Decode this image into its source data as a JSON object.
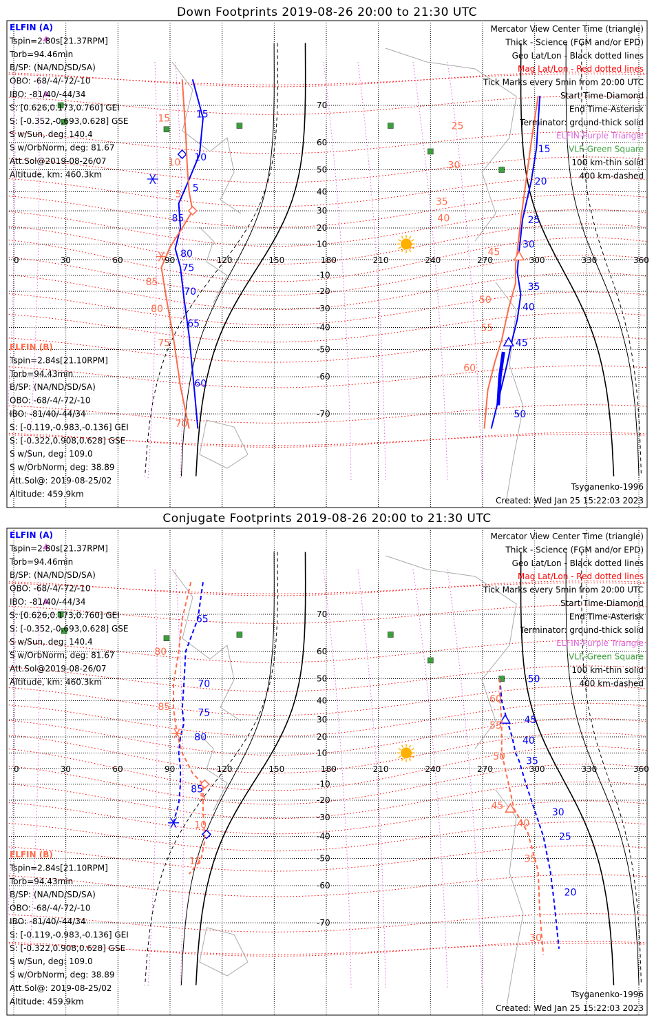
{
  "colors": {
    "elfin_a": "#0000ff",
    "elfin_b": "#ff6a4a",
    "mag_grid": "#ff0000",
    "purple": "#dd66dd",
    "vlf_green": "#3aa03a",
    "terminator": "#000000",
    "sun": "#ffb000"
  },
  "chart_data": [
    {
      "type": "scatter",
      "title": "Down Footprints 2019-08-26 20:00 to 21:30 UTC",
      "projection": "mercator",
      "xlim": [
        0,
        360
      ],
      "ylim": [
        -80,
        80
      ],
      "x_ticks": [
        "0",
        "30",
        "60",
        "90",
        "120",
        "150",
        "180",
        "210",
        "240",
        "270",
        "300",
        "330",
        "360"
      ],
      "y_ticks": [
        "70",
        "60",
        "50",
        "40",
        "30",
        "20",
        "10",
        "-10",
        "-20",
        "-30",
        "-40",
        "-50",
        "-60",
        "-70"
      ],
      "elfin_a_info": [
        "ELFIN (A)",
        "Tspin=2.80s[21.37RPM]",
        "Torb=94.46min",
        "B/SP: (NA/ND/SD/SA)",
        "OBO: -68/-4/-72/-10",
        "IBO: -81/40/-44/34",
        "S: [0.626,0.173,0.760] GEI",
        "S: [-0.352,-0.693,0.628] GSE",
        "S w/Sun, deg: 140.4",
        "S w/OrbNorm, deg: 81.67",
        "Att.Sol@2019-08-26/07",
        "Altitude, km: 460.3km"
      ],
      "elfin_b_info": [
        "ELFIN (B)",
        "Tspin=2.84s[21.10RPM]",
        "Torb=94.43min",
        "B/SP: (NA/ND/SD/SA)",
        "OBO: -68/-4/-72/-10",
        "IBO: -81/40/-44/34",
        "S: [-0.119,-0.983,-0.136] GEI",
        "S: [-0.322,0.908,0.628] GSE",
        "S w/Sun, deg: 109.0",
        "S w/OrbNorm, deg: 38.89",
        "Att.Sol@: 2019-08-25/02",
        "Altitude: 459.9km"
      ],
      "legend": [
        "Mercator View Center Time (triangle)",
        "Thick - Science (FGM and/or EPD)",
        "Geo Lat/Lon - Black dotted lines",
        "Mag Lat/Lon - Red dotted lines",
        "Tick Marks every 5min from 20:00 UTC",
        "Start Time-Diamond",
        "End Time-Asterisk",
        "Terminator: ground-thick solid",
        "ELFIN-Purple Triangle",
        "VLF-Green Square",
        "100 km-thin solid",
        "400 km-dashed"
      ],
      "model": "Tsyganenko-1996",
      "created": "Created: Wed Jan 25 15:22:03 2023",
      "sun": {
        "lon": 226,
        "lat": 10
      },
      "vlf_stations": [
        [
          88,
          64
        ],
        [
          27,
          70
        ],
        [
          29,
          66
        ],
        [
          130,
          65
        ],
        [
          217,
          65
        ],
        [
          240,
          57
        ],
        [
          281,
          50
        ]
      ],
      "series": [
        {
          "name": "ELFIN (A)",
          "dashed": false,
          "color_key": "elfin_a",
          "pass1": [
            [
              103,
              75
            ],
            [
              109,
              67
            ],
            [
              107,
              56
            ],
            [
              100,
              44
            ],
            [
              95,
              34
            ],
            [
              96,
              20
            ],
            [
              93,
              7
            ],
            [
              96,
              -5
            ],
            [
              98,
              -24
            ],
            [
              101,
              -44
            ],
            [
              104,
              -64
            ],
            [
              106,
              -73
            ]
          ],
          "pass1_ticks": [
            [
              "15",
              105,
              68
            ],
            [
              "10",
              104,
              55
            ],
            [
              "5",
              103,
              42
            ],
            [
              "85",
              91,
              26
            ],
            [
              "80",
              96,
              4
            ],
            [
              "75",
              97,
              -5
            ],
            [
              "70",
              98,
              -20
            ],
            [
              "65",
              100,
              -38
            ],
            [
              "60",
              104,
              -62
            ]
          ],
          "pass2": [
            [
              275,
              -73
            ],
            [
              280,
              -65
            ],
            [
              284,
              -56
            ],
            [
              287,
              -46
            ],
            [
              290,
              -36
            ],
            [
              292,
              -22
            ],
            [
              290,
              -8
            ],
            [
              291,
              5
            ],
            [
              293,
              25
            ],
            [
              298,
              45
            ],
            [
              301,
              58
            ],
            [
              303,
              72
            ]
          ],
          "pass2_ticks": [
            [
              "15",
              302,
              58
            ],
            [
              "20",
              300,
              45
            ],
            [
              "25",
              296,
              25
            ],
            [
              "30",
              293,
              10
            ],
            [
              "35",
              296,
              -17
            ],
            [
              "40",
              293,
              -29
            ],
            [
              "45",
              289,
              -47
            ],
            [
              "50",
              288,
              -70
            ]
          ],
          "start": [
            97,
            56
          ],
          "end": [
            80,
            46
          ],
          "center": [
            285,
            -47
          ],
          "science": [
            [
              [
                282,
                -51
              ],
              [
                280,
                -60
              ],
              [
                279,
                -68
              ]
            ]
          ]
        },
        {
          "name": "ELFIN (B)",
          "dashed": false,
          "color_key": "elfin_b",
          "pass1": [
            [
              97,
              75
            ],
            [
              99,
              63
            ],
            [
              100,
              50
            ],
            [
              101,
              40
            ],
            [
              103,
              30
            ],
            [
              97,
              20
            ],
            [
              90,
              8
            ],
            [
              85,
              -5
            ],
            [
              88,
              -25
            ],
            [
              92,
              -45
            ],
            [
              96,
              -63
            ],
            [
              101,
              -73
            ]
          ],
          "pass1_ticks": [
            [
              "15",
              83,
              67
            ],
            [
              "10",
              89,
              53
            ],
            [
              "5",
              93,
              39
            ],
            [
              "85",
              76,
              -14
            ],
            [
              "80",
              79,
              -30
            ],
            [
              "75",
              83,
              -47
            ],
            [
              "70",
              93,
              -72
            ]
          ],
          "pass2": [
            [
              271,
              -73
            ],
            [
              273,
              -64
            ],
            [
              277,
              -55
            ],
            [
              281,
              -46
            ],
            [
              285,
              -30
            ],
            [
              289,
              -15
            ],
            [
              289,
              -3
            ],
            [
              290,
              5
            ],
            [
              292,
              25
            ],
            [
              295,
              45
            ],
            [
              298,
              60
            ],
            [
              302,
              72
            ]
          ],
          "pass2_ticks": [
            [
              "25",
              252,
              65
            ],
            [
              "30",
              250,
              52
            ],
            [
              "35",
              243,
              35
            ],
            [
              "40",
              244,
              26
            ],
            [
              "45",
              273,
              5
            ],
            [
              "50",
              268,
              -25
            ],
            [
              "55",
              269,
              -40
            ],
            [
              "60",
              259,
              -57
            ]
          ],
          "start": [
            103,
            30
          ],
          "end": [
            85,
            2
          ],
          "center": [
            291,
            2
          ]
        }
      ]
    },
    {
      "type": "scatter",
      "title": "Conjugate Footprints 2019-08-26 20:00 to 21:30 UTC",
      "projection": "mercator",
      "xlim": [
        0,
        360
      ],
      "ylim": [
        -80,
        80
      ],
      "x_ticks": [
        "0",
        "30",
        "60",
        "90",
        "120",
        "150",
        "180",
        "210",
        "240",
        "270",
        "300",
        "330",
        "360"
      ],
      "y_ticks": [
        "70",
        "60",
        "50",
        "40",
        "30",
        "20",
        "10",
        "-10",
        "-20",
        "-30",
        "-40",
        "-50",
        "-60",
        "-70"
      ],
      "elfin_a_info": [
        "ELFIN (A)",
        "Tspin=2.80s[21.37RPM]",
        "Torb=94.46min",
        "B/SP: (NA/ND/SD/SA)",
        "OBO: -68/-4/-72/-10",
        "IBO: -81/40/-44/34",
        "S: [0.626,0.173,0.760] GEI",
        "S: [-0.352,-0.693,0.628] GSE",
        "S w/Sun, deg: 140.4",
        "S w/OrbNorm, deg: 81.67",
        "Att.Sol@2019-08-26/07",
        "Altitude, km: 460.3km"
      ],
      "elfin_b_info": [
        "ELFIN (B)",
        "Tspin=2.84s[21.10RPM]",
        "Torb=94.43min",
        "B/SP: (NA/ND/SD/SA)",
        "OBO: -68/-4/-72/-10",
        "IBO: -81/40/-44/34",
        "S: [-0.119,-0.983,-0.136] GEI",
        "S: [-0.322,0.908,0.628] GSE",
        "S w/Sun, deg: 109.0",
        "S w/OrbNorm, deg: 38.89",
        "Att.Sol@: 2019-08-25/02",
        "Altitude: 459.9km"
      ],
      "legend": [
        "Mercator View Center Time (triangle)",
        "Thick - Science (FGM and/or EPD)",
        "Geo Lat/Lon - Black dotted lines",
        "Mag Lat/Lon - Red dotted lines",
        "Tick Marks every 5min from 20:00 UTC",
        "Start Time-Diamond",
        "End Time-Asterisk",
        "Terminator: ground-thick solid",
        "ELFIN-Purple Triangle",
        "VLF-Green Square",
        "100 km-thin solid",
        "400 km-dashed"
      ],
      "model": "Tsyganenko-1996",
      "created": "Created: Wed Jan 25 15:22:03 2023",
      "sun": {
        "lon": 226,
        "lat": 10
      },
      "vlf_stations": [
        [
          88,
          64
        ],
        [
          27,
          70
        ],
        [
          29,
          66
        ],
        [
          130,
          65
        ],
        [
          217,
          65
        ],
        [
          240,
          57
        ],
        [
          281,
          50
        ]
      ],
      "series": [
        {
          "name": "ELFIN (A)",
          "dashed": true,
          "color_key": "elfin_a",
          "pass1": [
            [
              109,
              76
            ],
            [
              106,
              69
            ],
            [
              99,
              60
            ],
            [
              98,
              48
            ],
            [
              97,
              36
            ],
            [
              98,
              28
            ],
            [
              96,
              20
            ],
            [
              95,
              10
            ],
            [
              96,
              0
            ],
            [
              96,
              -10
            ],
            [
              95,
              -22
            ],
            [
              92,
              -33
            ]
          ],
          "pass1_ticks": [
            [
              "65",
              105,
              69
            ],
            [
              "70",
              106,
              48
            ],
            [
              "75",
              106,
              34
            ],
            [
              "80",
              104,
              20
            ],
            [
              "85",
              102,
              -13
            ]
          ],
          "pass2": [
            [
              280,
              50
            ],
            [
              281,
              40
            ],
            [
              284,
              30
            ],
            [
              287,
              20
            ],
            [
              289,
              10
            ],
            [
              291,
              5
            ],
            [
              295,
              -10
            ],
            [
              300,
              -26
            ],
            [
              305,
              -40
            ],
            [
              309,
              -55
            ],
            [
              311,
              -64
            ],
            [
              314,
              -75
            ]
          ],
          "pass2_ticks": [
            [
              "50",
              296,
              50
            ],
            [
              "45",
              294,
              30
            ],
            [
              "40",
              293,
              18
            ],
            [
              "35",
              295,
              5
            ],
            [
              "30",
              310,
              -27
            ],
            [
              "25",
              314,
              -40
            ],
            [
              "20",
              317,
              -62
            ]
          ],
          "start": [
            111,
            -39
          ],
          "end": [
            92,
            -33
          ],
          "center": [
            283,
            30
          ]
        },
        {
          "name": "ELFIN (B)",
          "dashed": true,
          "color_key": "elfin_b",
          "pass1": [
            [
              102,
              76
            ],
            [
              97,
              69
            ],
            [
              95,
              60
            ],
            [
              92,
              48
            ],
            [
              92,
              36
            ],
            [
              94,
              22
            ],
            [
              97,
              10
            ],
            [
              103,
              -3
            ],
            [
              109,
              -10
            ],
            [
              109,
              -25
            ],
            [
              110,
              -42
            ],
            [
              108,
              -50
            ],
            [
              105,
              -53
            ],
            [
              101,
              -56
            ]
          ],
          "pass1_ticks": [
            [
              "80",
              81,
              60
            ],
            [
              "85",
              83,
              37
            ],
            [
              "5",
              107,
              -18
            ],
            [
              "10",
              104,
              -34
            ],
            [
              "15",
              101,
              -51
            ]
          ],
          "pass2": [
            [
              280,
              50
            ],
            [
              280,
              40
            ],
            [
              281,
              30
            ],
            [
              281,
              20
            ],
            [
              281,
              10
            ],
            [
              283,
              0
            ],
            [
              286,
              -15
            ],
            [
              288,
              -25
            ],
            [
              296,
              -38
            ],
            [
              302,
              -55
            ],
            [
              303,
              -68
            ],
            [
              305,
              -76
            ]
          ],
          "pass2_ticks": [
            [
              "60",
              274,
              41
            ],
            [
              "55",
              274,
              27
            ],
            [
              "50",
              276,
              8
            ],
            [
              "45",
              275,
              -23
            ],
            [
              "40",
              290,
              -33
            ],
            [
              "35",
              294,
              -50
            ],
            [
              "30",
              297,
              -73
            ]
          ],
          "start": [
            110,
            -10
          ],
          "end": [
            94,
            22
          ],
          "center": [
            286,
            -25
          ]
        }
      ]
    }
  ]
}
